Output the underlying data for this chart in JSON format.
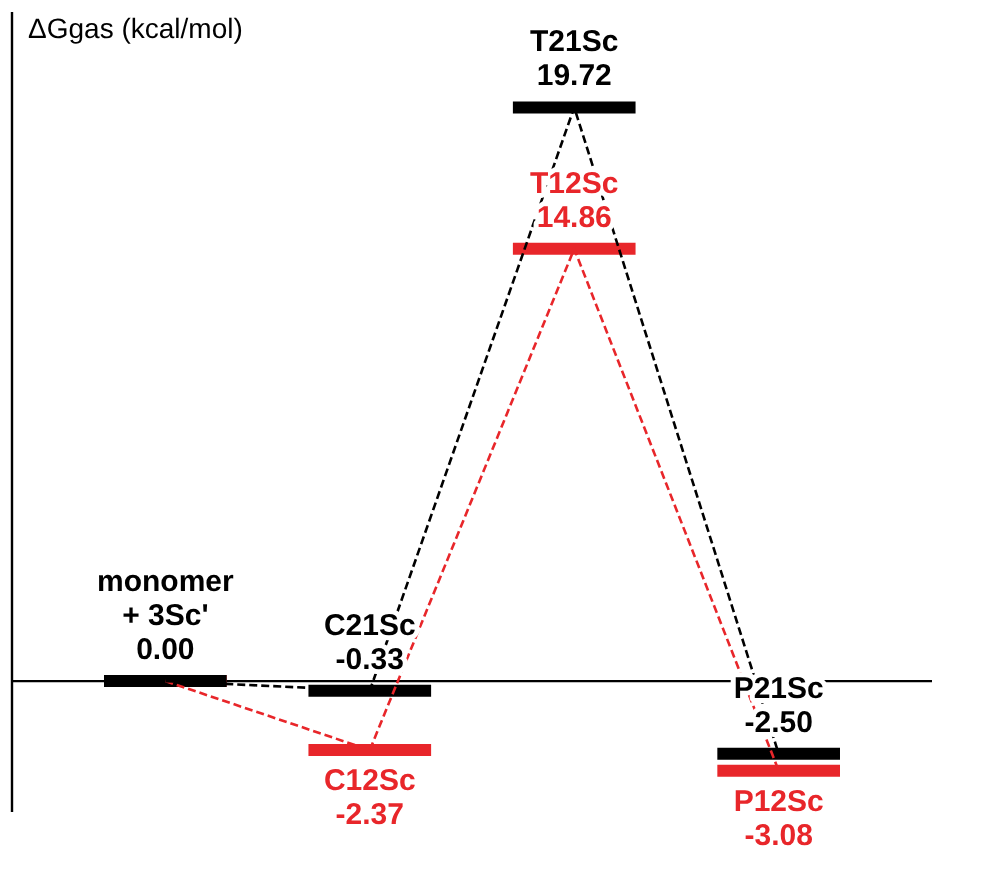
{
  "chart_data": {
    "type": "line",
    "ylabel": "ΔGgas (kcal/mol)",
    "categories": [
      null,
      null,
      null,
      null
    ],
    "ylim": [
      -4.5,
      23
    ],
    "line_style": "dashed",
    "series": [
      {
        "color": "#000000",
        "values": [
          0.0,
          -0.33,
          19.72,
          -2.5
        ],
        "value_labels": [
          "monomer\n+ 3Sc'\n0.00",
          "C21Sc\n-0.33",
          "T21Sc\n19.72",
          "P21Sc\n-2.50"
        ]
      },
      {
        "color": "#e8262a",
        "values": [
          0.0,
          -2.37,
          14.86,
          -3.08
        ],
        "value_labels": [
          null,
          "C12Sc\n-2.37",
          "T12Sc\n14.86",
          "P12Sc\n-3.08"
        ]
      }
    ]
  }
}
